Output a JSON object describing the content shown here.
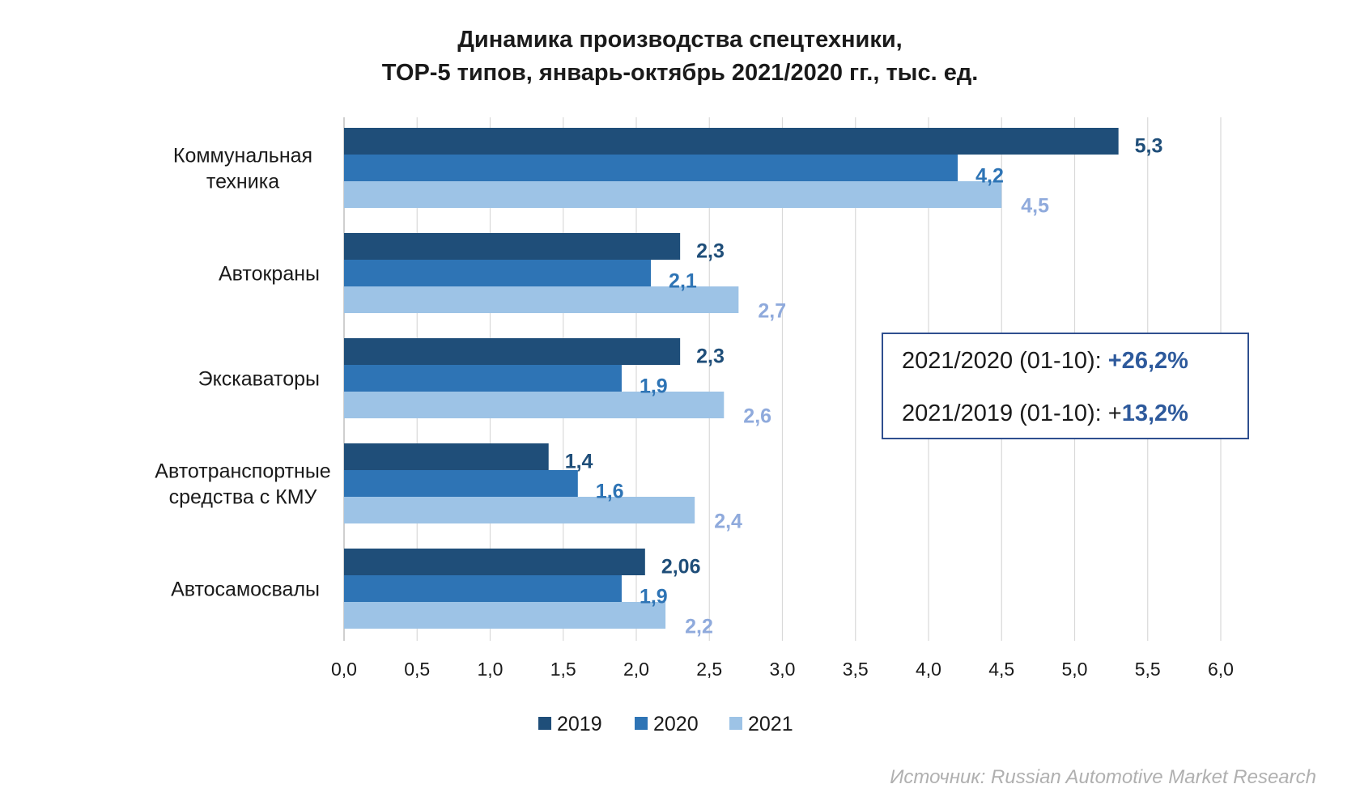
{
  "colors": {
    "2019": "#1f4e79",
    "2020": "#2e74b5",
    "2021": "#9dc3e6",
    "label_2019": "#1f4e79",
    "label_2020": "#2e74b5",
    "label_2021": "#8faadc",
    "grid": "#d9d9d9",
    "box_border": "#2f4f8f"
  },
  "chart_data": {
    "type": "bar",
    "orientation": "horizontal",
    "title": [
      "Динамика производства спецтехники,",
      "TOP-5 типов, январь-октябрь 2021/2020 гг., тыс. ед."
    ],
    "categories": [
      [
        "Коммунальная",
        "техника"
      ],
      [
        "Автокраны"
      ],
      [
        "Экскаваторы"
      ],
      [
        "Автотранспортные",
        "средства с КМУ"
      ],
      [
        "Автосамосвалы"
      ]
    ],
    "series": [
      {
        "name": "2019",
        "values": [
          5.3,
          2.3,
          2.3,
          1.4,
          2.06
        ],
        "labels": [
          "5,3",
          "2,3",
          "2,3",
          "1,4",
          "2,06"
        ]
      },
      {
        "name": "2020",
        "values": [
          4.2,
          2.1,
          1.9,
          1.6,
          1.9
        ],
        "labels": [
          "4,2",
          "2,1",
          "1,9",
          "1,6",
          "1,9"
        ]
      },
      {
        "name": "2021",
        "values": [
          4.5,
          2.7,
          2.6,
          2.4,
          2.2
        ],
        "labels": [
          "4,5",
          "2,7",
          "2,6",
          "2,4",
          "2,2"
        ]
      }
    ],
    "xlim": [
      0,
      6
    ],
    "xticks": [
      0,
      0.5,
      1,
      1.5,
      2,
      2.5,
      3,
      3.5,
      4,
      4.5,
      5,
      5.5,
      6
    ],
    "xtick_labels": [
      "0,0",
      "0,5",
      "1,0",
      "1,5",
      "2,0",
      "2,5",
      "3,0",
      "3,5",
      "4,0",
      "4,5",
      "5,0",
      "5,5",
      "6,0"
    ],
    "grid": "vertical",
    "legend": "bottom"
  },
  "info_box": {
    "line1_prefix": "2021/2020 (01-10): ",
    "line1_value": "+26,2%",
    "line2_prefix": "2021/2019 (01-10): +",
    "line2_value": "13,2%"
  },
  "source": "Источник: Russian Automotive Market Research"
}
